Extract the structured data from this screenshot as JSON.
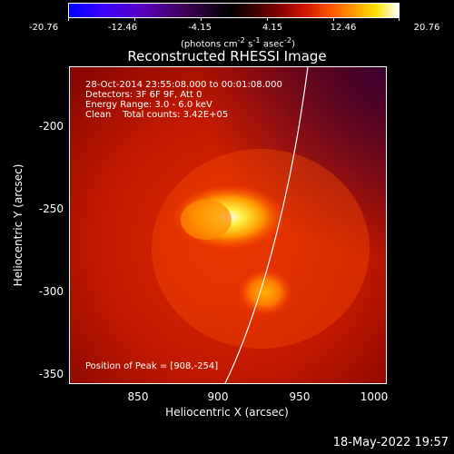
{
  "colorbar": {
    "ticks": [
      "-20.76",
      "-12.46",
      "-4.15",
      "4.15",
      "12.46",
      "20.76"
    ],
    "unit_html": "(photons cm<sup>-2</sup> s<sup>-1</sup> asec<sup>-2</sup>)"
  },
  "title": "Reconstructed RHESSI Image",
  "annotations": {
    "time": "28-Oct-2014 23:55:08.000 to 00:01:08.000",
    "detectors": "Detectors: 3F 6F 9F, Att 0",
    "energy": "Energy Range: 3.0 - 6.0 keV",
    "clean": "Clean    Total counts: 3.42E+05",
    "peak": "Position of Peak = [908,-254]"
  },
  "axes": {
    "xlabel": "Heliocentric X (arcsec)",
    "ylabel": "Heliocentric Y (arcsec)",
    "xticks": [
      "850",
      "900",
      "950",
      "1000"
    ],
    "yticks": [
      "-200",
      "-250",
      "-300",
      "-350"
    ]
  },
  "footer_date": "18-May-2022 19:57"
}
